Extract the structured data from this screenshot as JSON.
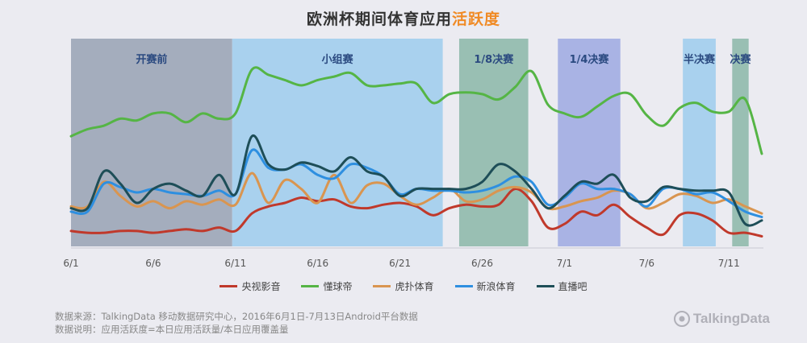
{
  "title": {
    "main": "欧洲杯期间体育应用",
    "accent": "活跃度"
  },
  "colors": {
    "accent": "#f08a24"
  },
  "chart_data": {
    "type": "line",
    "x_labels": [
      "6/1",
      "6/6",
      "6/11",
      "6/16",
      "6/21",
      "6/26",
      "7/1",
      "7/6",
      "7/11"
    ],
    "x_label_days": [
      1,
      6,
      11,
      16,
      21,
      26,
      31,
      36,
      41
    ],
    "x_range": [
      1,
      43
    ],
    "y_range": [
      0,
      100
    ],
    "grid": false,
    "legend_position": "bottom",
    "phases": [
      {
        "label": "开赛前",
        "start": 1,
        "end": 10.8,
        "color": "#a4adbd"
      },
      {
        "label": "小组赛",
        "start": 10.8,
        "end": 23.6,
        "color": "#a9d1ee"
      },
      {
        "label": "1/8决赛",
        "start": 24.6,
        "end": 28.8,
        "color": "#99bfb3"
      },
      {
        "label": "1/4决赛",
        "start": 30.6,
        "end": 34.4,
        "color": "#a9b3e4"
      },
      {
        "label": "半决赛",
        "start": 38.2,
        "end": 40.2,
        "color": "#a9d1ee"
      },
      {
        "label": "决赛",
        "start": 41.2,
        "end": 42.2,
        "color": "#99bfb3"
      }
    ],
    "series": [
      {
        "name": "央视影音",
        "color": "#c0392b",
        "values": [
          6,
          5,
          5,
          6,
          6,
          5,
          6,
          7,
          6,
          8,
          6,
          16,
          20,
          22,
          25,
          23,
          24,
          20,
          19,
          21,
          22,
          20,
          15,
          19,
          21,
          20,
          21,
          30,
          23,
          8,
          10,
          17,
          15,
          21,
          14,
          8,
          4,
          15,
          16,
          12,
          5,
          5,
          3
        ]
      },
      {
        "name": "懂球帝",
        "color": "#55b545",
        "values": [
          60,
          64,
          66,
          70,
          69,
          73,
          73,
          68,
          73,
          70,
          73,
          98,
          95,
          92,
          89,
          92,
          94,
          96,
          89,
          89,
          90,
          90,
          79,
          84,
          85,
          84,
          81,
          88,
          97,
          78,
          73,
          71,
          77,
          83,
          84,
          72,
          66,
          76,
          79,
          74,
          74,
          81,
          50
        ]
      },
      {
        "name": "虎扑体育",
        "color": "#d99550",
        "values": [
          20,
          20,
          34,
          26,
          20,
          23,
          19,
          23,
          21,
          24,
          21,
          39,
          22,
          35,
          30,
          22,
          38,
          22,
          32,
          33,
          26,
          21,
          25,
          30,
          23,
          24,
          29,
          31,
          28,
          19,
          20,
          23,
          25,
          29,
          27,
          19,
          22,
          27,
          26,
          22,
          24,
          20,
          16
        ]
      },
      {
        "name": "新浪体育",
        "color": "#2e8fe0",
        "values": [
          17,
          17,
          33,
          31,
          28,
          30,
          28,
          27,
          26,
          29,
          27,
          52,
          42,
          41,
          44,
          38,
          36,
          44,
          42,
          37,
          27,
          30,
          29,
          29,
          28,
          29,
          32,
          37,
          34,
          21,
          25,
          33,
          30,
          30,
          27,
          20,
          30,
          30,
          27,
          28,
          23,
          17,
          14
        ]
      },
      {
        "name": "直播吧",
        "color": "#1e4e58",
        "values": [
          19,
          19,
          40,
          33,
          22,
          30,
          33,
          29,
          26,
          38,
          27,
          60,
          44,
          41,
          45,
          43,
          40,
          48,
          40,
          37,
          26,
          30,
          30,
          30,
          30,
          34,
          44,
          40,
          30,
          19,
          26,
          34,
          33,
          38,
          25,
          23,
          31,
          30,
          29,
          29,
          28,
          10,
          12
        ]
      }
    ]
  },
  "footer": {
    "line1": "数据来源：TalkingData 移动数据研究中心，2016年6月1日-7月13日Android平台数据",
    "line2": "数据说明：应用活跃度=本日应用活跃量/本日应用覆盖量"
  },
  "logo": {
    "text": "TalkingData"
  }
}
